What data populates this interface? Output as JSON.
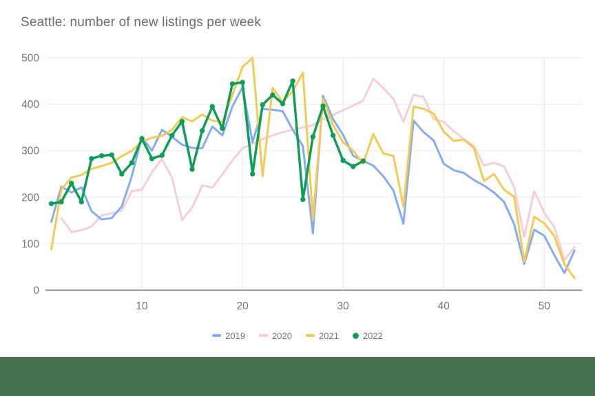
{
  "page": {
    "footer_color": "#47704E",
    "background_color": "#ffffff"
  },
  "chart_data": {
    "type": "line",
    "title": "Seattle: number of new listings per week",
    "xlabel": "",
    "ylabel": "",
    "x_range": [
      1,
      53
    ],
    "ylim": [
      0,
      500
    ],
    "x_ticks": [
      10,
      20,
      30,
      40,
      50
    ],
    "y_ticks": [
      0,
      100,
      200,
      300,
      400,
      500
    ],
    "grid": true,
    "legend_position": "bottom",
    "axis_text_color": "#757575",
    "grid_color": "#e8e8e8",
    "baseline_color": "#9e9e9e",
    "series": [
      {
        "name": "2019",
        "color": "#84acf6",
        "marker": "line",
        "values": [
          147,
          223,
          210,
          221,
          170,
          152,
          155,
          180,
          245,
          330,
          300,
          345,
          330,
          313,
          306,
          305,
          352,
          333,
          395,
          437,
          318,
          390,
          388,
          385,
          345,
          310,
          122,
          418,
          368,
          334,
          289,
          278,
          268,
          245,
          215,
          143,
          365,
          340,
          322,
          272,
          258,
          252,
          237,
          225,
          210,
          190,
          142,
          56,
          130,
          117,
          75,
          37,
          85
        ]
      },
      {
        "name": "2020",
        "color": "#f7ced3",
        "marker": "line",
        "values": [
          null,
          155,
          125,
          129,
          137,
          161,
          165,
          171,
          213,
          216,
          254,
          282,
          242,
          151,
          178,
          225,
          221,
          249,
          279,
          305,
          315,
          325,
          333,
          340,
          345,
          350,
          355,
          368,
          377,
          387,
          397,
          408,
          455,
          435,
          412,
          362,
          420,
          416,
          368,
          362,
          342,
          325,
          310,
          268,
          274,
          266,
          222,
          115,
          213,
          166,
          136,
          65,
          92
        ]
      },
      {
        "name": "2021",
        "color": "#f4ca55",
        "marker": "line",
        "values": [
          88,
          217,
          242,
          248,
          261,
          267,
          274,
          288,
          300,
          319,
          328,
          332,
          345,
          372,
          363,
          378,
          365,
          362,
          420,
          480,
          500,
          245,
          435,
          405,
          428,
          468,
          152,
          412,
          355,
          318,
          300,
          272,
          336,
          294,
          289,
          180,
          395,
          390,
          380,
          341,
          321,
          324,
          306,
          235,
          250,
          216,
          201,
          62,
          158,
          144,
          116,
          56,
          26
        ]
      },
      {
        "name": "2022",
        "color": "#0f9d58",
        "marker": "circle",
        "values": [
          186,
          190,
          230,
          190,
          283,
          289,
          291,
          250,
          274,
          326,
          283,
          290,
          333,
          363,
          260,
          343,
          395,
          348,
          444,
          447,
          250,
          399,
          420,
          401,
          450,
          195,
          330,
          396,
          333,
          279,
          266,
          278
        ]
      }
    ]
  }
}
